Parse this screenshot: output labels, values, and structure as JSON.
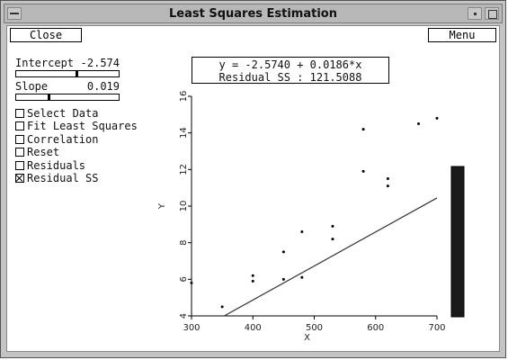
{
  "window": {
    "title": "Least Squares Estimation"
  },
  "toolbar": {
    "close_label": "Close",
    "menu_label": "Menu"
  },
  "controls": {
    "intercept": {
      "label": "Intercept",
      "value": "-2.574",
      "position": 0.58
    },
    "slope": {
      "label": "Slope",
      "value": "0.019",
      "position": 0.31
    }
  },
  "options": [
    {
      "label": "Select Data",
      "checked": false
    },
    {
      "label": "Fit Least Squares",
      "checked": false
    },
    {
      "label": "Correlation",
      "checked": false
    },
    {
      "label": "Reset",
      "checked": false
    },
    {
      "label": "Residuals",
      "checked": false
    },
    {
      "label": "Residual SS",
      "checked": true
    }
  ],
  "equation": {
    "line1": "y = -2.5740 + 0.0186*x",
    "line2": "Residual SS :  121.5088"
  },
  "chart_data": {
    "type": "scatter",
    "xlabel": "X",
    "ylabel": "Y",
    "xlim": [
      300,
      700
    ],
    "ylim": [
      4,
      16
    ],
    "xticks": [
      "300",
      "400",
      "500",
      "600",
      "700"
    ],
    "yticks": [
      "4",
      "6",
      "8",
      "10",
      "12",
      "14",
      "16"
    ],
    "points": [
      [
        300,
        5.8
      ],
      [
        350,
        4.5
      ],
      [
        400,
        6.2
      ],
      [
        400,
        5.9
      ],
      [
        450,
        7.5
      ],
      [
        450,
        6.0
      ],
      [
        480,
        8.6
      ],
      [
        480,
        6.1
      ],
      [
        530,
        8.9
      ],
      [
        530,
        8.2
      ],
      [
        580,
        14.2
      ],
      [
        580,
        11.9
      ],
      [
        620,
        11.5
      ],
      [
        620,
        11.1
      ],
      [
        670,
        14.5
      ],
      [
        700,
        14.8
      ]
    ],
    "fit_line": {
      "intercept": -2.574,
      "slope": 0.0186
    },
    "residual_ss_bar": 121.5088
  }
}
